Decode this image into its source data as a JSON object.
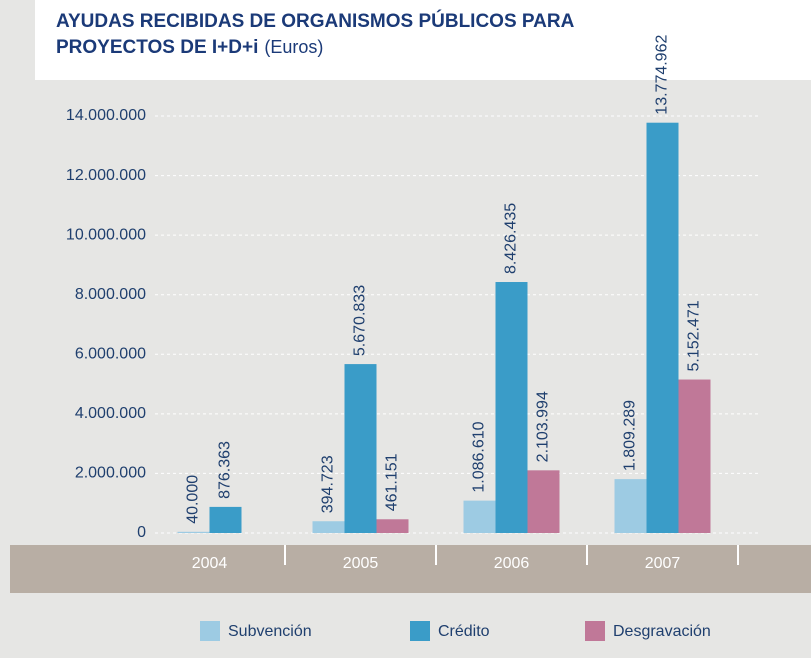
{
  "chart_data": {
    "type": "bar",
    "title": [
      "AYUDAS RECIBIDAS DE ORGANISMOS PÚBLICOS PARA",
      "PROYECTOS DE I+D+i"
    ],
    "subtitle": "(Euros)",
    "categories": [
      "2004",
      "2005",
      "2006",
      "2007"
    ],
    "series": [
      {
        "name": "Subvención",
        "color": "#9dcbe3",
        "values": [
          40000,
          394723,
          1086610,
          1809289
        ],
        "value_labels": [
          "40.000",
          "394.723",
          "1.086.610",
          "1.809.289"
        ]
      },
      {
        "name": "Crédito",
        "color": "#3a9cc8",
        "values": [
          876363,
          5670833,
          8426435,
          13774962
        ],
        "value_labels": [
          "876.363",
          "5.670.833",
          "8.426.435",
          "13.774.962"
        ]
      },
      {
        "name": "Desgravación",
        "color": "#c07898",
        "values": [
          null,
          461151,
          2103994,
          5152471
        ],
        "value_labels": [
          null,
          "461.151",
          "2.103.994",
          "5.152.471"
        ]
      }
    ],
    "ylim": [
      0,
      14000000
    ],
    "yticks": [
      0,
      {
        "value": 2000000,
        "label": "2.000.000"
      },
      {
        "value": 4000000,
        "label": "4.000.000"
      },
      {
        "value": 6000000,
        "label": "6.000.000"
      },
      {
        "value": 8000000,
        "label": "8.000.000"
      },
      {
        "value": 10000000,
        "label": "10.000.000"
      },
      {
        "value": 12000000,
        "label": "12.000.000"
      },
      {
        "value": 14000000,
        "label": "14.000.000"
      }
    ],
    "grid": true,
    "legend": "bottom"
  }
}
